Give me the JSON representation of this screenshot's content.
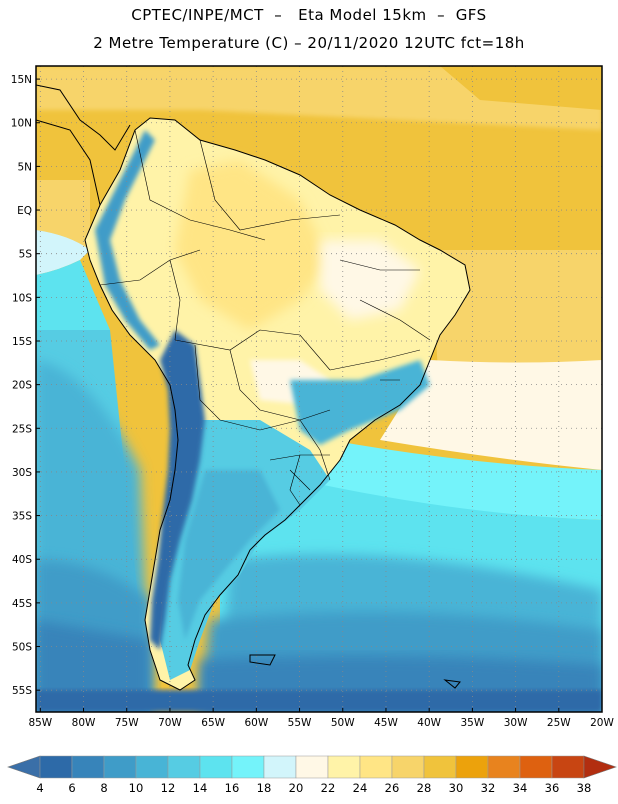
{
  "header": {
    "title_line1": "CPTEC/INPE/MCT  –   Eta Model 15km  –  GFS",
    "title_line2": "2 Metre Temperature (C) – 20/11/2020 12UTC fct=18h"
  },
  "map": {
    "lat_ticks": [
      "15N",
      "10N",
      "5N",
      "EQ",
      "5S",
      "10S",
      "15S",
      "20S",
      "25S",
      "30S",
      "35S",
      "40S",
      "45S",
      "50S",
      "55S"
    ],
    "lon_ticks": [
      "85W",
      "80W",
      "75W",
      "70W",
      "65W",
      "60W",
      "55W",
      "50W",
      "45W",
      "40W",
      "35W",
      "30W",
      "25W",
      "20W"
    ],
    "lat_values": [
      15,
      10,
      5,
      0,
      -5,
      -10,
      -15,
      -20,
      -25,
      -30,
      -35,
      -40,
      -45,
      -50,
      -55
    ],
    "lon_values": [
      -85,
      -80,
      -75,
      -70,
      -65,
      -60,
      -55,
      -50,
      -45,
      -40,
      -35,
      -30,
      -25,
      -20
    ],
    "extent": {
      "lon_min": -85.5,
      "lon_max": -20,
      "lat_min": -57.5,
      "lat_max": 16.5
    }
  },
  "colorbar": {
    "labels": [
      "4",
      "6",
      "8",
      "10",
      "12",
      "14",
      "16",
      "18",
      "20",
      "22",
      "24",
      "26",
      "28",
      "30",
      "32",
      "34",
      "36",
      "38"
    ],
    "colors": [
      "#3a6fa8",
      "#2d6aa8",
      "#3784ba",
      "#3f9cc8",
      "#48b4d6",
      "#56cce3",
      "#5de3ef",
      "#74f3fa",
      "#d2f5fb",
      "#fff8e6",
      "#fff3a8",
      "#ffe585",
      "#f7d46a",
      "#f0c33c",
      "#eca20c",
      "#e8831e",
      "#de6110",
      "#c84512",
      "#b22e10"
    ]
  }
}
